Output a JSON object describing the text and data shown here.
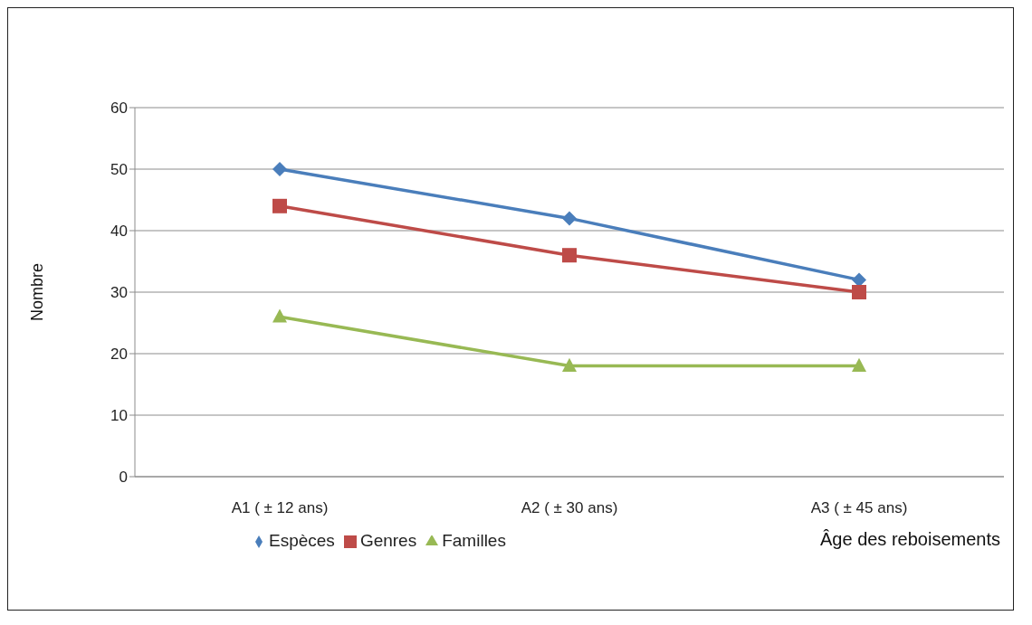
{
  "chart_data": {
    "type": "line",
    "xlabel": "Âge des reboisements",
    "ylabel": "Nombre",
    "categories": [
      "A1 ( ± 12 ans)",
      "A2 ( ± 30 ans)",
      "A3 ( ± 45 ans)"
    ],
    "series": [
      {
        "name": "Espèces",
        "color": "#4a7ebb",
        "marker": "diamond",
        "values": [
          50,
          42,
          32
        ]
      },
      {
        "name": "Genres",
        "color": "#be4b48",
        "marker": "square",
        "values": [
          44,
          36,
          30
        ]
      },
      {
        "name": "Familles",
        "color": "#98b954",
        "marker": "triangle",
        "values": [
          26,
          18,
          18
        ]
      }
    ],
    "ylim": [
      0,
      60
    ],
    "yticks": [
      0,
      10,
      20,
      30,
      40,
      50,
      60
    ],
    "grid": "y",
    "legend": "bottom",
    "line_style": "solid"
  }
}
